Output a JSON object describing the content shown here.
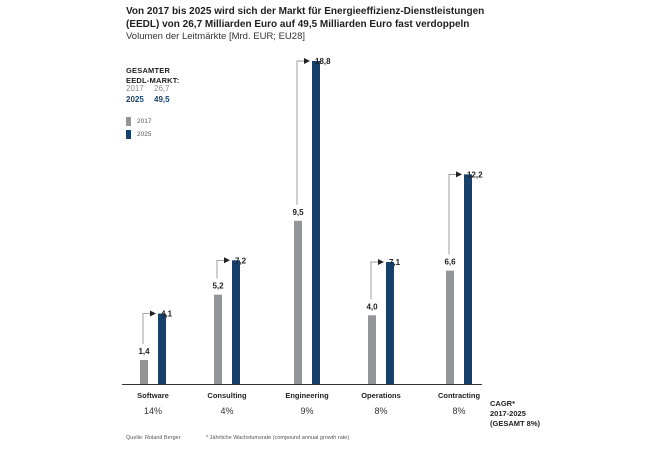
{
  "title": "Von 2017 bis 2025 wird sich der Markt für Energieeffizienz-Dienstleistungen (EEDL) von 26,7 Milliarden Euro auf 49,5 Milliarden Euro fast verdoppeln",
  "subtitle": "Volumen der Leitmärkte [Mrd. EUR; EU28]",
  "summary": {
    "heading_line1": "GESAMTER",
    "heading_line2": "EEDL-MARKT:",
    "row_2017_year": "2017",
    "row_2017_value": "26,7",
    "row_2025_year": "2025",
    "row_2025_value": "49,5"
  },
  "cagr_label": {
    "line1": "CAGR*",
    "line2": "2017-2025",
    "line3": "(GESAMT 8%)"
  },
  "footer": {
    "source": "Quelle: Roland Berger",
    "footnote": "* Jährliche Wachstumsrate (compound annual growth rate)"
  },
  "colors": {
    "series_2017": "#939598",
    "series_2025": "#17416b"
  },
  "chart_data": {
    "type": "bar",
    "title": "Von 2017 bis 2025 wird sich der Markt für Energieeffizienz-Dienstleistungen (EEDL) von 26,7 Milliarden Euro auf 49,5 Milliarden Euro fast verdoppeln",
    "ylabel": "Volumen der Leitmärkte [Mrd. EUR; EU28]",
    "xlabel": "",
    "ylim": [
      0,
      18.8
    ],
    "categories": [
      "Software",
      "Consulting",
      "Engineering",
      "Operations",
      "Contracting"
    ],
    "series": [
      {
        "name": "2017",
        "values": [
          1.4,
          5.2,
          9.5,
          4.0,
          6.6
        ],
        "labels": [
          "1,4",
          "5,2",
          "9,5",
          "4,0",
          "6,6"
        ]
      },
      {
        "name": "2025",
        "values": [
          4.1,
          7.2,
          18.8,
          7.1,
          12.2
        ],
        "labels": [
          "4,1",
          "7,2",
          "18,8",
          "7,1",
          "12,2"
        ]
      }
    ],
    "cagr": [
      "14%",
      "4%",
      "9%",
      "8%",
      "8%"
    ],
    "legend": [
      "2017",
      "2025"
    ],
    "legend_position": "top-left",
    "grid": false
  }
}
